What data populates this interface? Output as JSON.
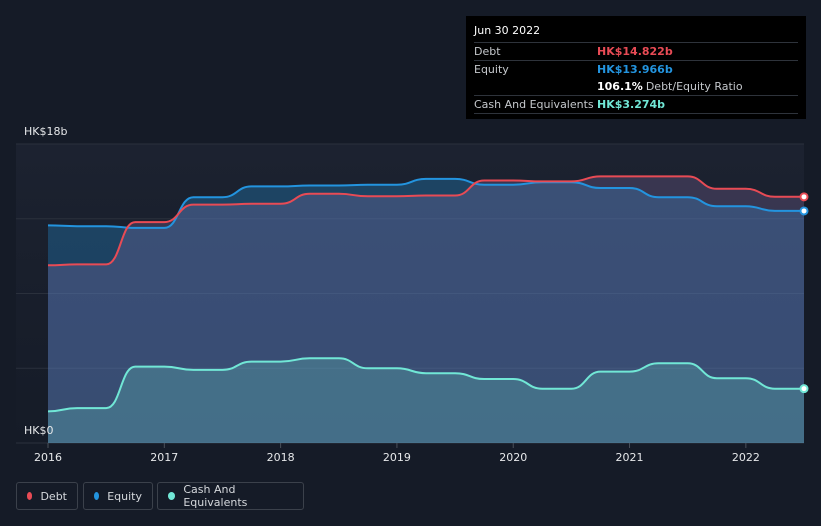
{
  "tooltip": {
    "date": "Jun 30 2022",
    "debt_label": "Debt",
    "debt_value": "HK$14.822b",
    "equity_label": "Equity",
    "equity_value": "HK$13.966b",
    "ratio_value": "106.1%",
    "ratio_text": "Debt/Equity Ratio",
    "cash_label": "Cash And Equivalents",
    "cash_value": "HK$3.274b"
  },
  "legend": [
    {
      "label": "Debt",
      "color": "#e84b55"
    },
    {
      "label": "Equity",
      "color": "#2394df"
    },
    {
      "label": "Cash And Equivalents",
      "color": "#71e7d6"
    }
  ],
  "colors": {
    "debt": "#e84b55",
    "equity": "#2394df",
    "cash": "#71e7d6",
    "background": "#151b27"
  },
  "chart_data": {
    "type": "area",
    "y_top_label": "HK$18b",
    "y_bottom_label": "HK$0",
    "ylim": [
      0,
      18
    ],
    "xlim": [
      2016.0,
      2022.5
    ],
    "x_ticks": [
      2016,
      2017,
      2018,
      2019,
      2020,
      2021,
      2022
    ],
    "x_tick_labels": [
      "2016",
      "2017",
      "2018",
      "2019",
      "2020",
      "2021",
      "2022"
    ],
    "grid": true,
    "legend_position": "bottom-left",
    "series": [
      {
        "name": "Debt",
        "x": [
          2016.0,
          2016.25,
          2016.5,
          2016.75,
          2017.0,
          2017.25,
          2017.5,
          2017.75,
          2018.0,
          2018.25,
          2018.5,
          2018.75,
          2019.0,
          2019.25,
          2019.5,
          2019.75,
          2020.0,
          2020.25,
          2020.5,
          2020.75,
          2021.0,
          2021.25,
          2021.5,
          2021.75,
          2022.0,
          2022.25,
          2022.5
        ],
        "values": [
          10.7,
          10.75,
          10.75,
          13.3,
          13.3,
          14.35,
          14.35,
          14.4,
          14.4,
          15.0,
          15.0,
          14.85,
          14.85,
          14.9,
          14.9,
          15.8,
          15.8,
          15.75,
          15.75,
          16.05,
          16.05,
          16.05,
          16.05,
          15.3,
          15.3,
          14.82,
          14.82
        ]
      },
      {
        "name": "Equity",
        "x": [
          2016.0,
          2016.25,
          2016.5,
          2016.75,
          2017.0,
          2017.25,
          2017.5,
          2017.75,
          2018.0,
          2018.25,
          2018.5,
          2018.75,
          2019.0,
          2019.25,
          2019.5,
          2019.75,
          2020.0,
          2020.25,
          2020.5,
          2020.75,
          2021.0,
          2021.25,
          2021.5,
          2021.75,
          2022.0,
          2022.25,
          2022.5
        ],
        "values": [
          13.1,
          13.05,
          13.05,
          12.95,
          12.95,
          14.8,
          14.8,
          15.45,
          15.45,
          15.5,
          15.5,
          15.55,
          15.55,
          15.9,
          15.9,
          15.55,
          15.55,
          15.7,
          15.7,
          15.35,
          15.35,
          14.8,
          14.8,
          14.25,
          14.25,
          13.97,
          13.97
        ]
      },
      {
        "name": "Cash And Equivalents",
        "x": [
          2016.0,
          2016.25,
          2016.5,
          2016.75,
          2017.0,
          2017.25,
          2017.5,
          2017.75,
          2018.0,
          2018.25,
          2018.5,
          2018.75,
          2019.0,
          2019.25,
          2019.5,
          2019.75,
          2020.0,
          2020.25,
          2020.5,
          2020.75,
          2021.0,
          2021.25,
          2021.5,
          2021.75,
          2022.0,
          2022.25,
          2022.5
        ],
        "values": [
          1.9,
          2.1,
          2.1,
          4.6,
          4.6,
          4.4,
          4.4,
          4.9,
          4.9,
          5.1,
          5.1,
          4.5,
          4.5,
          4.2,
          4.2,
          3.85,
          3.85,
          3.27,
          3.27,
          4.3,
          4.3,
          4.8,
          4.8,
          3.9,
          3.9,
          3.27,
          3.27
        ]
      }
    ]
  }
}
